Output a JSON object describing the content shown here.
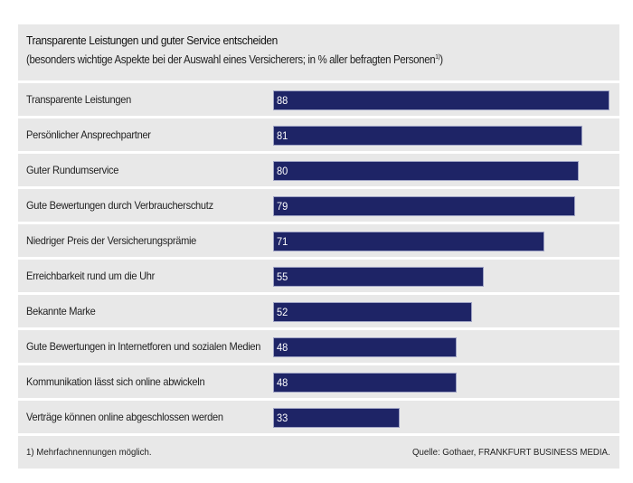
{
  "chart_data": {
    "type": "bar",
    "orientation": "horizontal",
    "title": "Transparente Leistungen und guter Service entscheiden",
    "subtitle": "(besonders wichtige Aspekte bei der Auswahl eines Versicherers; in % aller befragten Personen",
    "subtitle_footnote_mark": "1)",
    "subtitle_close": ")",
    "categories": [
      "Transparente Leistungen",
      "Persönlicher Ansprechpartner",
      "Guter Rundumservice",
      "Gute Bewertungen durch Verbraucherschutz",
      "Niedriger Preis der Versicherungsprämie",
      "Erreichbarkeit rund um die Uhr",
      "Bekannte Marke",
      "Gute Bewertungen in Internetforen und sozialen Medien",
      "Kommunikation lässt sich online abwickeln",
      "Verträge können online abgeschlossen werden"
    ],
    "values": [
      88,
      81,
      80,
      79,
      71,
      55,
      52,
      48,
      48,
      33
    ],
    "unit": "%",
    "xlim": [
      0,
      88
    ],
    "grid": false,
    "bar_color": "#1e2466",
    "footnote": "1)  Mehrfachnennungen möglich.",
    "source": "Quelle: Gothaer, FRANKFURT BUSINESS MEDIA."
  }
}
